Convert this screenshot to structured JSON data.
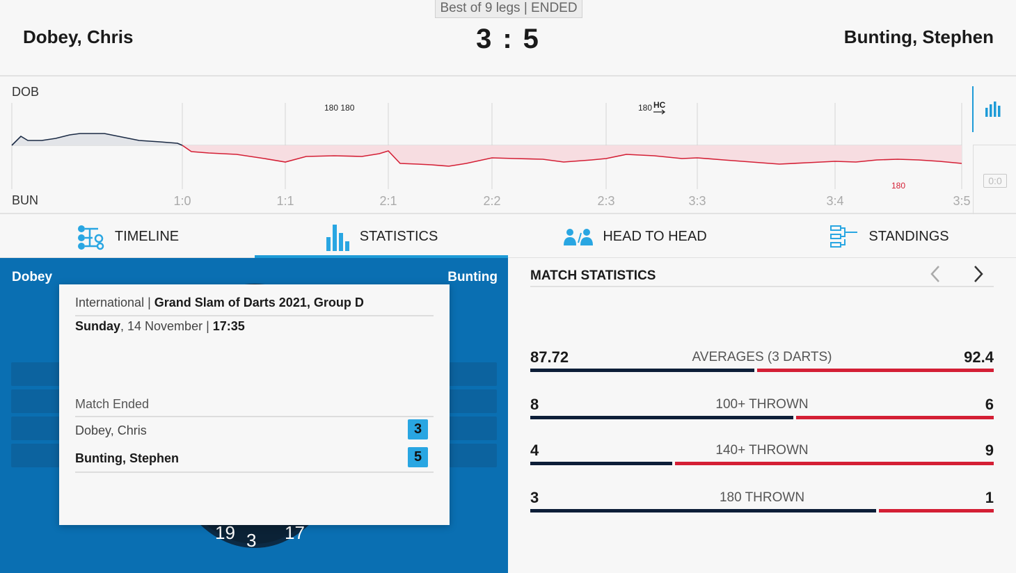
{
  "header": {
    "match_info": "Best of 9 legs | ENDED",
    "player_left": "Dobey, Chris",
    "player_right": "Bunting, Stephen",
    "score_left": "3",
    "score_sep": ":",
    "score_right": "5"
  },
  "timeline": {
    "label_top": "DOB",
    "label_bottom": "BUN",
    "legs": [
      "1:0",
      "1:1",
      "2:1",
      "2:2",
      "2:3",
      "3:3",
      "3:4",
      "3:5"
    ],
    "markers_top": [
      "180 180",
      "180"
    ],
    "marker_hc": "HC",
    "marker_bottom": "180",
    "zero_box": "0:0",
    "colors": {
      "dob": "#1a2a44",
      "bun": "#d41f35",
      "bun_fill": "#f7dde1",
      "dob_fill": "#e2e4e8"
    }
  },
  "tabs": [
    {
      "label": "TIMELINE",
      "icon": "timeline-icon"
    },
    {
      "label": "STATISTICS",
      "icon": "statistics-icon",
      "active": true
    },
    {
      "label": "HEAD TO HEAD",
      "icon": "head-to-head-icon"
    },
    {
      "label": "STANDINGS",
      "icon": "standings-icon"
    }
  ],
  "left_panel": {
    "name_left": "Dobey",
    "name_right": "Bunting",
    "board_numbers": [
      "19",
      "3",
      "17"
    ]
  },
  "popup": {
    "competition_prefix": "International | ",
    "competition": "Grand Slam of Darts 2021, Group D",
    "day": "Sunday",
    "date": ", 14 November | ",
    "time": "17:35",
    "status": "Match Ended",
    "player1": {
      "name": "Dobey, Chris",
      "score": "3"
    },
    "player2": {
      "name": "Bunting, Stephen",
      "score": "5"
    }
  },
  "match_statistics": {
    "title": "MATCH STATISTICS",
    "stats": [
      {
        "label": "AVERAGES (3 DARTS)",
        "left": "87.72",
        "right": "92.4",
        "left_share": 0.487
      },
      {
        "label": "100+ THROWN",
        "left": "8",
        "right": "6",
        "left_share": 0.571
      },
      {
        "label": "140+ THROWN",
        "left": "4",
        "right": "9",
        "left_share": 0.308
      },
      {
        "label": "180 THROWN",
        "left": "3",
        "right": "1",
        "left_share": 0.75
      }
    ]
  }
}
